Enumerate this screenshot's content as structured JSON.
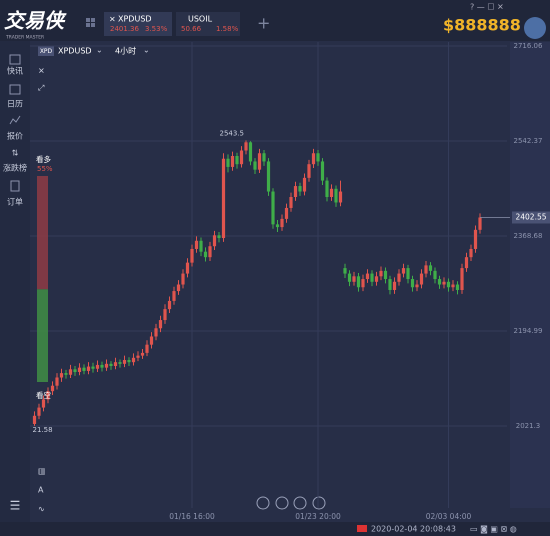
{
  "app": {
    "logo": "交易侠",
    "logo_sub": "TRADER MASTER",
    "tabs": [
      {
        "symbol": "XPDUSD",
        "price": "2401.36",
        "change": "3.53%"
      },
      {
        "symbol": "USOIL",
        "price": "50.66",
        "change": "1.58%"
      }
    ],
    "balance": "$888888",
    "sidebar": [
      "快讯",
      "日历",
      "报价",
      "涨跌榜",
      "订单"
    ],
    "chart_symbol": "XPDUSD",
    "badge": "XPD",
    "timeframe": "4小时",
    "sentiment": {
      "bull_text": "看多",
      "bull": 55,
      "bull_label": "55%",
      "bear_text": "看空",
      "bear": 45
    },
    "status_time": "2020-02-04 20:08:43"
  },
  "chart_data": {
    "type": "candlestick",
    "up_color": "#e0554e",
    "down_color": "#3fae49",
    "grid": true,
    "xlim": [
      -1,
      105
    ],
    "ylim": [
      1871.4,
      2723.4
    ],
    "xticks": [
      {
        "value": 35,
        "label": "01/16 16:00"
      },
      {
        "value": 63,
        "label": "01/23 20:00"
      },
      {
        "value": 92,
        "label": "02/03 04:00"
      }
    ],
    "yticks": [
      2716.06,
      2542.37,
      2368.68,
      2194.99,
      2021.3
    ],
    "min_label": "21.58",
    "ohlc": [
      [
        2025,
        2048,
        2021.58,
        2040
      ],
      [
        2040,
        2062,
        2034,
        2055
      ],
      [
        2055,
        2077,
        2048,
        2070
      ],
      [
        2070,
        2092,
        2063,
        2085
      ],
      [
        2085,
        2103,
        2078,
        2095
      ],
      [
        2095,
        2118,
        2088,
        2110
      ],
      [
        2110,
        2126,
        2102,
        2118
      ],
      [
        2118,
        2124,
        2108,
        2115
      ],
      [
        2115,
        2133,
        2109,
        2125
      ],
      [
        2125,
        2131,
        2113,
        2120
      ],
      [
        2120,
        2136,
        2114,
        2128
      ],
      [
        2128,
        2134,
        2116,
        2122
      ],
      [
        2122,
        2138,
        2116,
        2130
      ],
      [
        2130,
        2137,
        2119,
        2126
      ],
      [
        2126,
        2141,
        2120,
        2133
      ],
      [
        2133,
        2139,
        2121,
        2128
      ],
      [
        2128,
        2143,
        2122,
        2135
      ],
      [
        2135,
        2140,
        2124,
        2131
      ],
      [
        2131,
        2146,
        2125,
        2138
      ],
      [
        2138,
        2143,
        2128,
        2135
      ],
      [
        2135,
        2150,
        2129,
        2142
      ],
      [
        2142,
        2147,
        2131,
        2138
      ],
      [
        2138,
        2154,
        2132,
        2146
      ],
      [
        2146,
        2158,
        2140,
        2150
      ],
      [
        2150,
        2162,
        2144,
        2155
      ],
      [
        2155,
        2178,
        2149,
        2170
      ],
      [
        2170,
        2193,
        2163,
        2185
      ],
      [
        2185,
        2208,
        2178,
        2200
      ],
      [
        2200,
        2223,
        2193,
        2215
      ],
      [
        2215,
        2244,
        2208,
        2235
      ],
      [
        2235,
        2258,
        2228,
        2250
      ],
      [
        2250,
        2276,
        2243,
        2268
      ],
      [
        2268,
        2288,
        2261,
        2280
      ],
      [
        2280,
        2308,
        2273,
        2300
      ],
      [
        2300,
        2328,
        2293,
        2320
      ],
      [
        2320,
        2353,
        2313,
        2345
      ],
      [
        2345,
        2368,
        2338,
        2360
      ],
      [
        2360,
        2366,
        2332,
        2340
      ],
      [
        2340,
        2348,
        2322,
        2330
      ],
      [
        2330,
        2358,
        2323,
        2350
      ],
      [
        2350,
        2378,
        2343,
        2370
      ],
      [
        2370,
        2376,
        2357,
        2365
      ],
      [
        2365,
        2520,
        2358,
        2510
      ],
      [
        2510,
        2518,
        2485,
        2495
      ],
      [
        2495,
        2523,
        2488,
        2515
      ],
      [
        2515,
        2521,
        2492,
        2500
      ],
      [
        2500,
        2533,
        2494,
        2525
      ],
      [
        2525,
        2543.5,
        2518,
        2540
      ],
      [
        2540,
        2542,
        2498,
        2505
      ],
      [
        2505,
        2511,
        2482,
        2490
      ],
      [
        2490,
        2528,
        2484,
        2520
      ],
      [
        2520,
        2526,
        2497,
        2505
      ],
      [
        2505,
        2511,
        2442,
        2450
      ],
      [
        2450,
        2456,
        2382,
        2390
      ],
      [
        2390,
        2398,
        2376,
        2385
      ],
      [
        2385,
        2408,
        2378,
        2400
      ],
      [
        2400,
        2428,
        2393,
        2420
      ],
      [
        2420,
        2448,
        2413,
        2440
      ],
      [
        2440,
        2468,
        2433,
        2460
      ],
      [
        2460,
        2466,
        2442,
        2450
      ],
      [
        2450,
        2483,
        2443,
        2475
      ],
      [
        2475,
        2508,
        2468,
        2500
      ],
      [
        2500,
        2528,
        2493,
        2520
      ],
      [
        2520,
        2526,
        2497,
        2505
      ],
      [
        2505,
        2511,
        2462,
        2470
      ],
      [
        2470,
        2476,
        2432,
        2440
      ],
      [
        2440,
        2463,
        2433,
        2455
      ],
      [
        2455,
        2461,
        2422,
        2430
      ],
      [
        2430,
        2470,
        2423,
        2450
      ],
      [
        2310,
        2318,
        2292,
        2300
      ],
      [
        2300,
        2306,
        2277,
        2285
      ],
      [
        2285,
        2303,
        2278,
        2295
      ],
      [
        2295,
        2301,
        2267,
        2275
      ],
      [
        2275,
        2298,
        2268,
        2290
      ],
      [
        2290,
        2308,
        2283,
        2300
      ],
      [
        2300,
        2306,
        2277,
        2285
      ],
      [
        2285,
        2303,
        2278,
        2295
      ],
      [
        2295,
        2313,
        2288,
        2305
      ],
      [
        2305,
        2311,
        2282,
        2290
      ],
      [
        2290,
        2296,
        2262,
        2270
      ],
      [
        2270,
        2293,
        2263,
        2285
      ],
      [
        2285,
        2308,
        2278,
        2300
      ],
      [
        2300,
        2318,
        2293,
        2310
      ],
      [
        2310,
        2316,
        2282,
        2290
      ],
      [
        2290,
        2296,
        2267,
        2275
      ],
      [
        2275,
        2288,
        2268,
        2280
      ],
      [
        2280,
        2308,
        2273,
        2300
      ],
      [
        2300,
        2323,
        2293,
        2315
      ],
      [
        2315,
        2321,
        2297,
        2305
      ],
      [
        2305,
        2311,
        2282,
        2290
      ],
      [
        2290,
        2296,
        2272,
        2280
      ],
      [
        2280,
        2293,
        2273,
        2285
      ],
      [
        2285,
        2291,
        2267,
        2275
      ],
      [
        2275,
        2288,
        2268,
        2280
      ],
      [
        2280,
        2286,
        2262,
        2270
      ],
      [
        2270,
        2318,
        2263,
        2310
      ],
      [
        2310,
        2338,
        2303,
        2330
      ],
      [
        2330,
        2353,
        2323,
        2345
      ],
      [
        2345,
        2388,
        2338,
        2380
      ],
      [
        2380,
        2410,
        2373,
        2402.55
      ]
    ]
  }
}
